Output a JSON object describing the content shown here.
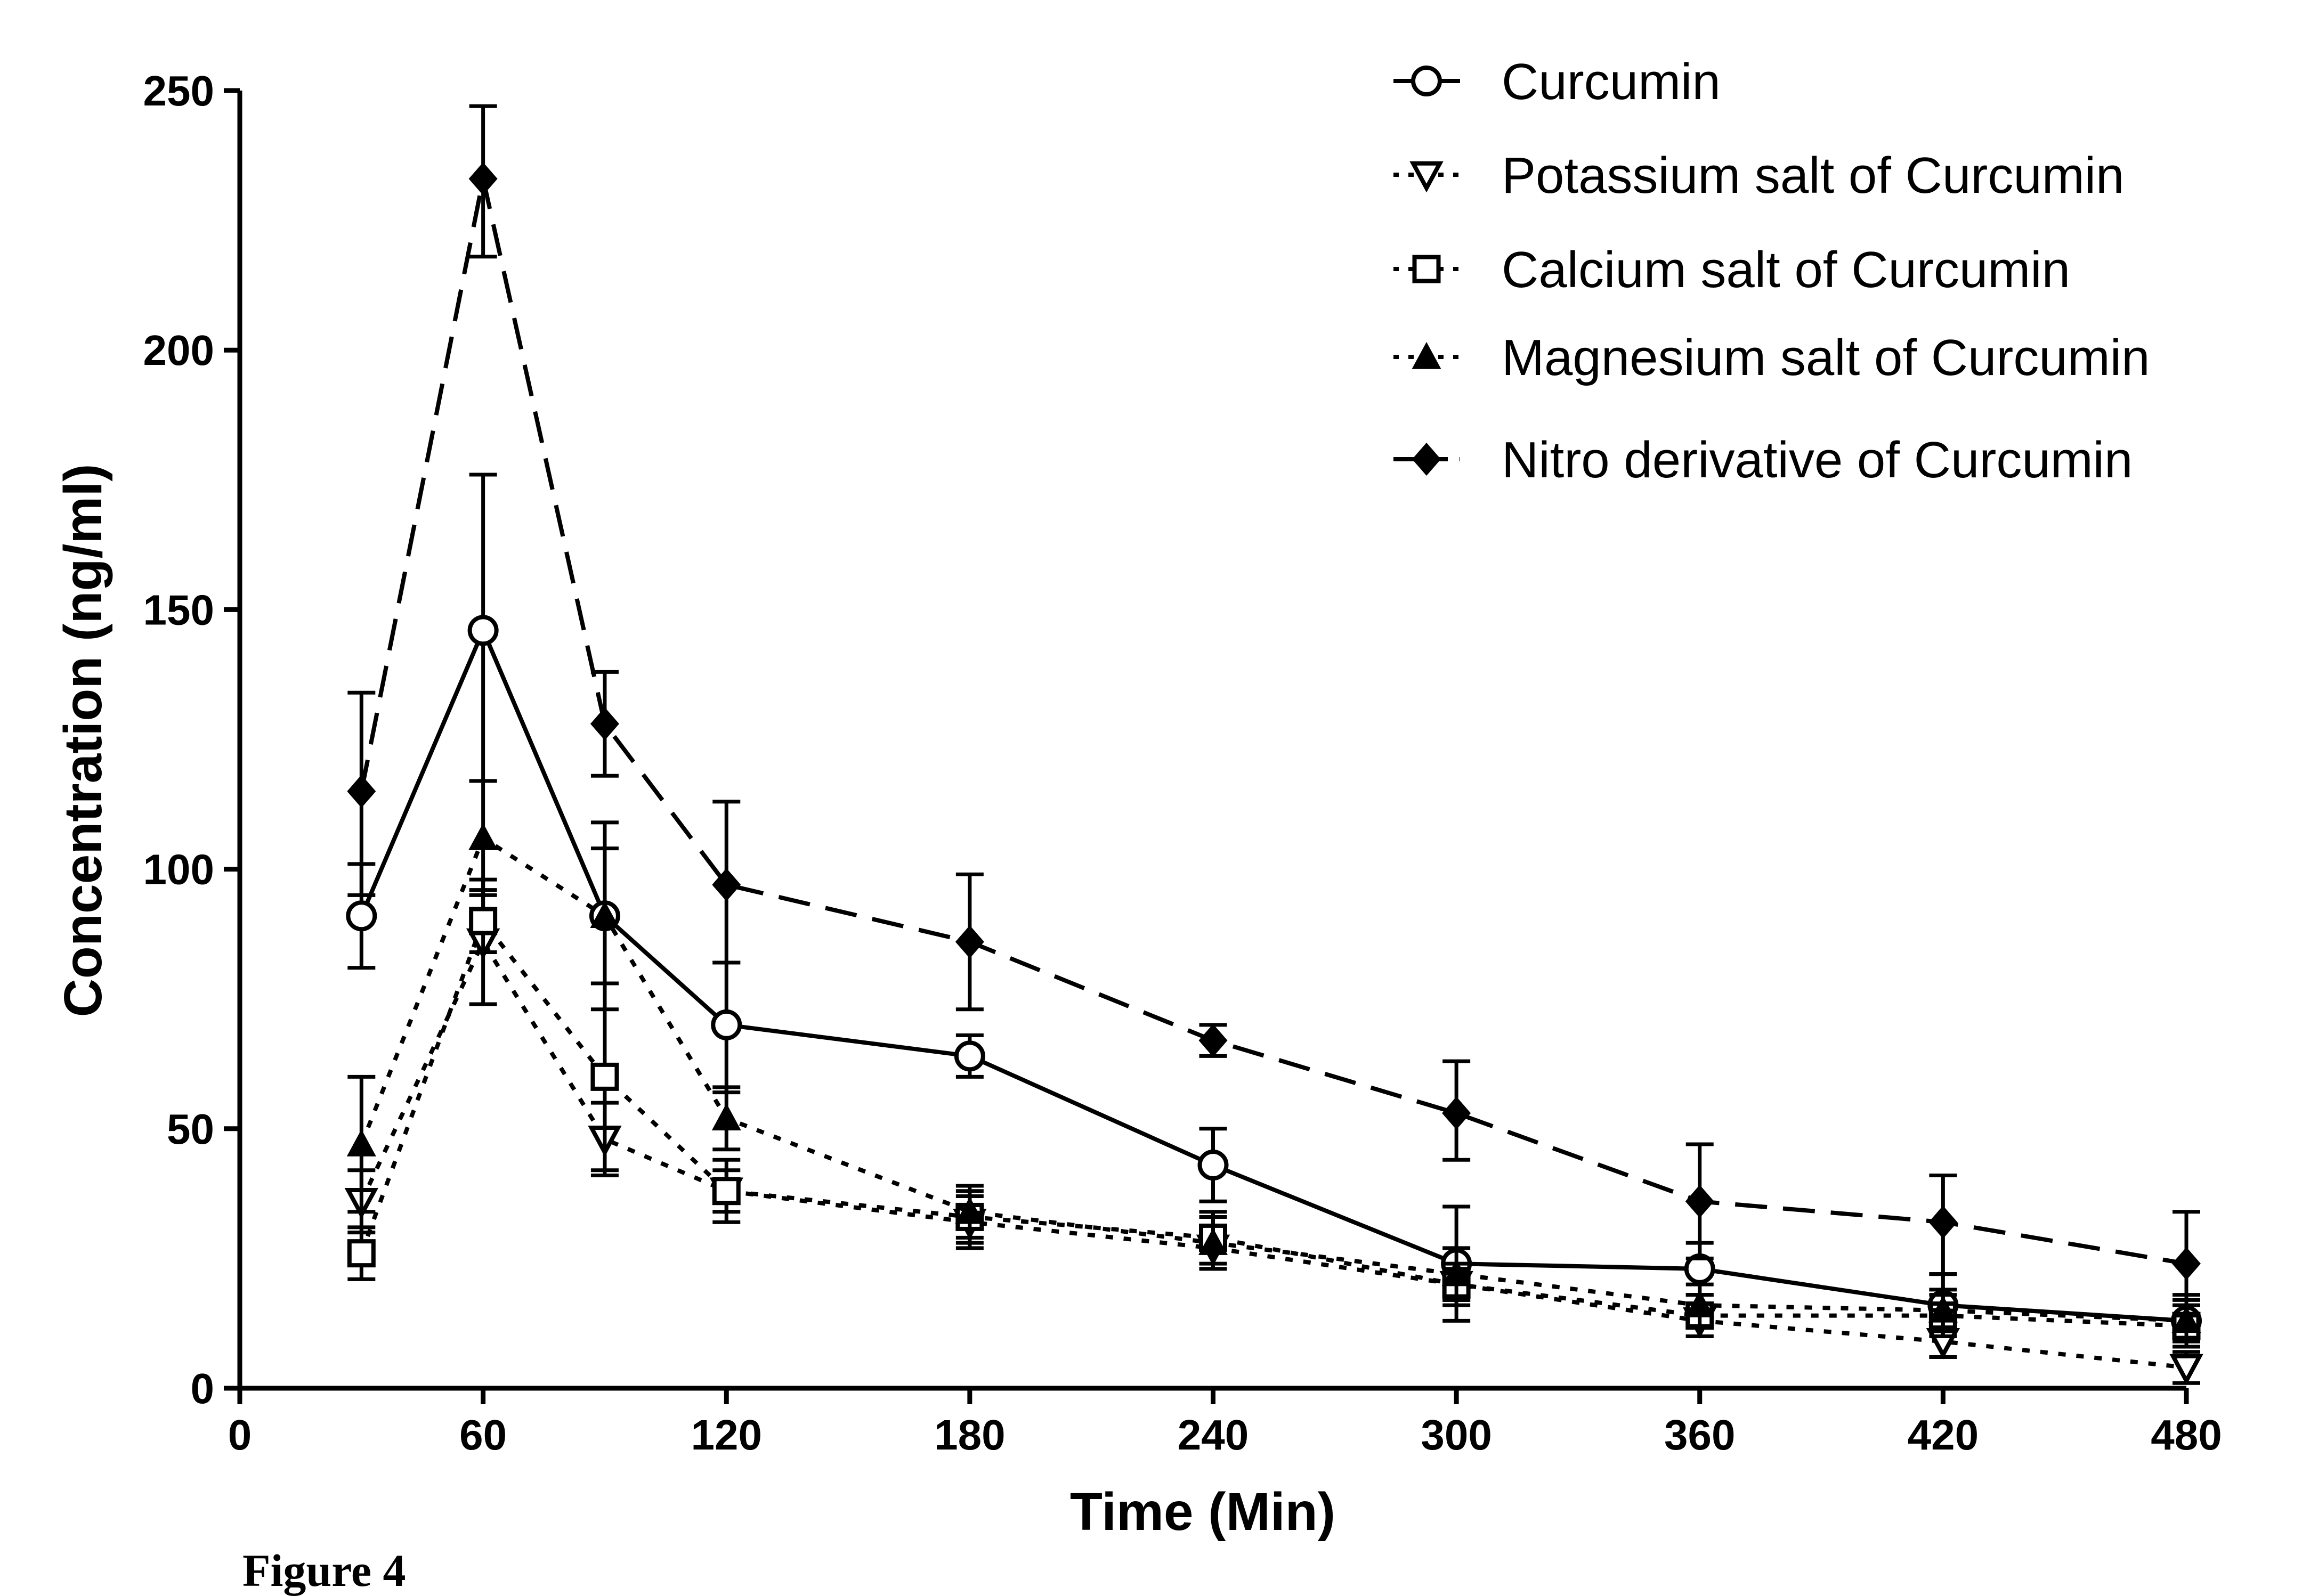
{
  "caption": "Figure 4",
  "chart_data": {
    "type": "line",
    "title": "",
    "xlabel": "Time (Min)",
    "ylabel": "Concentration (ng/ml)",
    "xlim": [
      0,
      480
    ],
    "ylim": [
      0,
      250
    ],
    "xticks": [
      "0",
      "60",
      "120",
      "180",
      "240",
      "300",
      "360",
      "420",
      "480"
    ],
    "yticks": [
      "0",
      "50",
      "100",
      "150",
      "200",
      "250"
    ],
    "grid": false,
    "legend_position": "top-right",
    "x": [
      30,
      60,
      90,
      120,
      180,
      240,
      300,
      360,
      420,
      480
    ],
    "series": [
      {
        "name": "Curcumin",
        "marker": "open-circle",
        "line_style": "solid",
        "values": [
          91,
          146,
          91,
          70,
          64,
          43,
          24,
          23,
          16,
          13
        ],
        "error_upper": [
          101,
          176,
          109,
          82,
          68,
          50,
          35,
          28,
          22,
          18
        ],
        "error_lower": [
          81,
          117,
          73,
          57,
          60,
          36,
          13,
          18,
          11,
          8
        ]
      },
      {
        "name": "Potassium salt of Curcumin",
        "marker": "open-triangle-down",
        "line_style": "dotted",
        "values": [
          36,
          86,
          48,
          38,
          32,
          27,
          20,
          13,
          9,
          4
        ],
        "error_upper": [
          42,
          98,
          55,
          44,
          37,
          31,
          23,
          16,
          12,
          7
        ],
        "error_lower": [
          30,
          74,
          41,
          32,
          27,
          23,
          17,
          10,
          6,
          1
        ]
      },
      {
        "name": "Calcium salt of Curcumin",
        "marker": "open-square",
        "line_style": "dotted",
        "values": [
          26,
          90,
          60,
          38,
          33,
          29,
          20,
          14,
          14,
          12
        ],
        "error_upper": [
          31,
          96,
          78,
          42,
          38,
          34,
          24,
          18,
          18,
          16
        ],
        "error_lower": [
          21,
          84,
          42,
          34,
          28,
          24,
          16,
          10,
          10,
          8
        ]
      },
      {
        "name": "Magnesium salt of Curcumin",
        "marker": "filled-triangle-up",
        "line_style": "dotted",
        "values": [
          47,
          106,
          91,
          52,
          34,
          28,
          22,
          16,
          15,
          13
        ],
        "error_upper": [
          60,
          117,
          104,
          58,
          39,
          33,
          27,
          20,
          19,
          17
        ],
        "error_lower": [
          34,
          95,
          78,
          46,
          29,
          23,
          17,
          12,
          11,
          9
        ]
      },
      {
        "name": "Nitro derivative of Curcumin",
        "marker": "filled-diamond",
        "line_style": "dashed",
        "values": [
          115,
          233,
          128,
          97,
          86,
          67,
          53,
          36,
          32,
          24
        ],
        "error_upper": [
          134,
          247,
          138,
          113,
          99,
          70,
          63,
          47,
          41,
          34
        ],
        "error_lower": [
          95,
          218,
          118,
          82,
          73,
          64,
          44,
          25,
          22,
          14
        ]
      }
    ]
  }
}
